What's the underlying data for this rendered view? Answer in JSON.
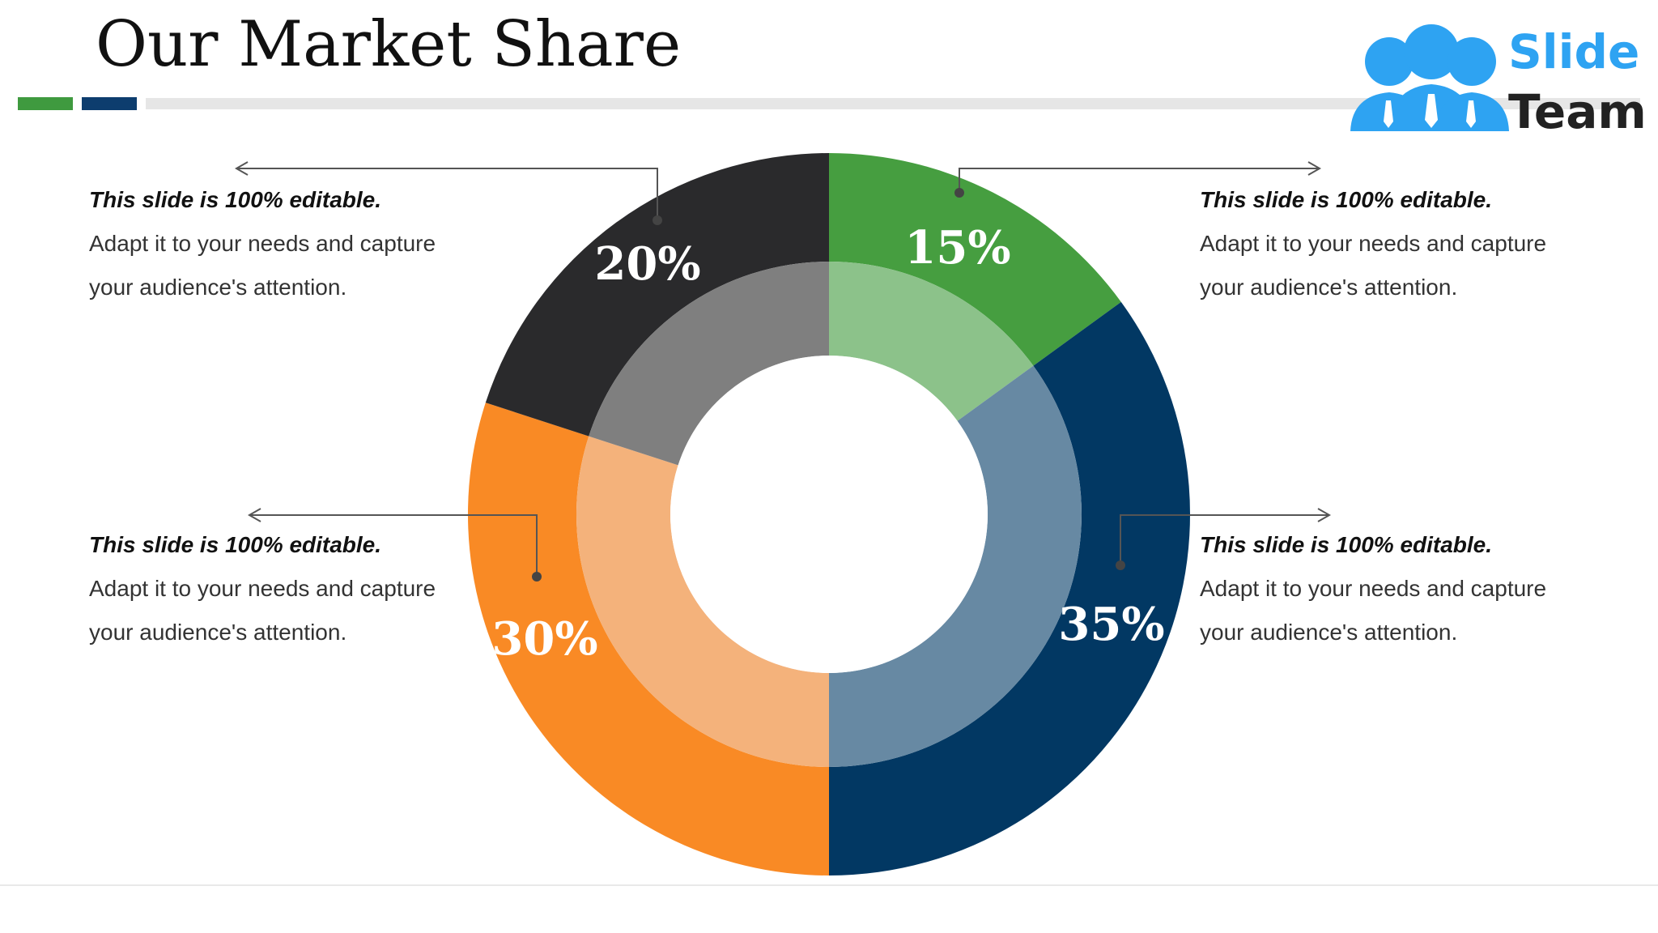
{
  "title": "Our Market Share",
  "logo": {
    "line1": "Slide",
    "line2": "Team"
  },
  "callouts": [
    {
      "heading": "This slide is 100% editable.",
      "body": "Adapt it to your needs and capture your audience's attention."
    },
    {
      "heading": "This slide is 100% editable.",
      "body": "Adapt it to your needs and capture your audience's attention."
    },
    {
      "heading": "This slide is 100% editable.",
      "body": "Adapt it to your needs and capture your audience's attention."
    },
    {
      "heading": "This slide is 100% editable.",
      "body": "Adapt it to your needs and capture your audience's attention."
    }
  ],
  "colors": {
    "accent_green": "#3f9a3f",
    "accent_blue": "#0d3d6e",
    "logo_blue": "#2ea3f2"
  },
  "chart_data": {
    "type": "pie",
    "categories": [
      "",
      "",
      "",
      ""
    ],
    "values": [
      15,
      35,
      30,
      20
    ],
    "labels": [
      "15%",
      "35%",
      "30%",
      "20%"
    ],
    "colors_outer": [
      "#469e40",
      "#023863",
      "#f98a25",
      "#2a2a2c"
    ],
    "colors_inner": [
      "#8cc28a",
      "#6789a3",
      "#f4b27b",
      "#7f7f7f"
    ],
    "title": "",
    "legend": "none"
  }
}
